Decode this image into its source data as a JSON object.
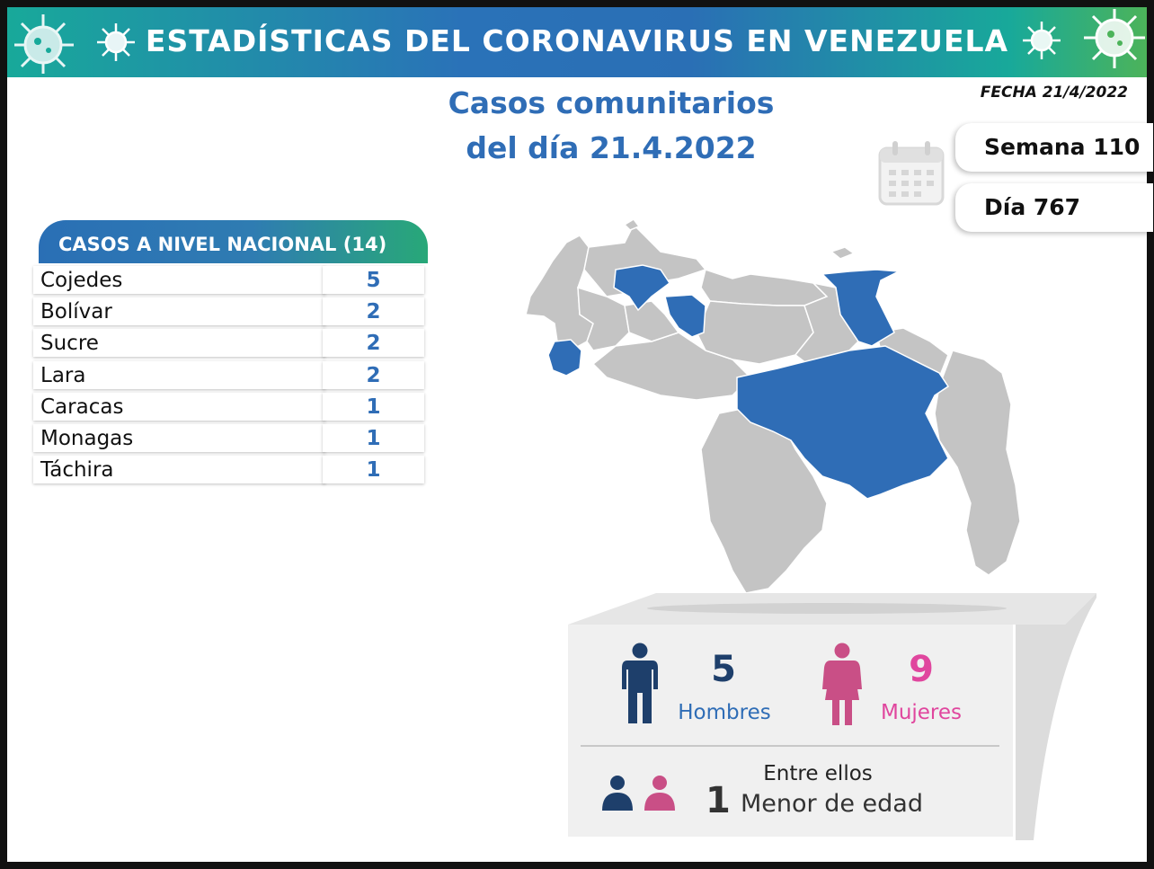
{
  "banner": {
    "title": "ESTADÍSTICAS DEL CORONAVIRUS EN VENEZUELA"
  },
  "header": {
    "title_line1": "Casos comunitarios",
    "title_line2": "del día 21.4.2022",
    "fecha": "FECHA 21/4/2022",
    "semana": "Semana 110",
    "dia": "Día 767"
  },
  "table": {
    "heading": "CASOS A NIVEL NACIONAL  (14)",
    "rows": [
      {
        "state": "Cojedes",
        "cases": "5"
      },
      {
        "state": "Bolívar",
        "cases": "2"
      },
      {
        "state": "Sucre",
        "cases": "2"
      },
      {
        "state": "Lara",
        "cases": "2"
      },
      {
        "state": "Caracas",
        "cases": "1"
      },
      {
        "state": "Monagas",
        "cases": "1"
      },
      {
        "state": "Táchira",
        "cases": "1"
      }
    ]
  },
  "gender": {
    "men_count": "5",
    "men_label": "Hombres",
    "women_count": "9",
    "women_label": "Mujeres"
  },
  "minors": {
    "intro": "Entre ellos",
    "count": "1",
    "label": "Menor de edad"
  },
  "colors": {
    "accent_blue": "#2f6db6",
    "highlight_state": "#2f6db6",
    "state_gray": "#c4c4c4",
    "men": "#1e3f6b",
    "women": "#e0469e"
  },
  "icons": [
    "virus-icon",
    "calendar-icon",
    "man-icon",
    "woman-icon",
    "people-pair-icon"
  ]
}
